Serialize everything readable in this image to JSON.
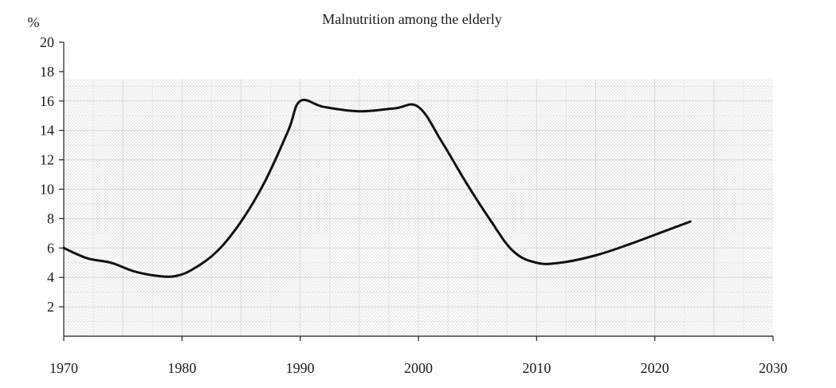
{
  "chart_data": {
    "type": "line",
    "title": "Malnutrition among the elderly",
    "xlabel": "",
    "ylabel": "%",
    "xlim": [
      1970,
      2030
    ],
    "ylim": [
      0,
      20
    ],
    "xticks": [
      "1970",
      "1980",
      "1990",
      "2000",
      "2010",
      "2020",
      "2030"
    ],
    "yticks": [
      "2",
      "4",
      "6",
      "8",
      "10",
      "12",
      "14",
      "16",
      "18",
      "20"
    ],
    "grid": true,
    "legend": "none",
    "series": [
      {
        "x": [
          1970,
          1972,
          1974,
          1976,
          1978,
          1979.5,
          1981,
          1983,
          1985,
          1987,
          1989,
          1990,
          1992,
          1995,
          1998,
          2000,
          2002,
          2004,
          2006,
          2008,
          2010,
          2012,
          2015,
          2018,
          2021,
          2023
        ],
        "y": [
          6.0,
          5.3,
          5.0,
          4.4,
          4.1,
          4.1,
          4.6,
          5.8,
          7.8,
          10.5,
          14.0,
          16.0,
          15.6,
          15.3,
          15.5,
          15.6,
          13.2,
          10.5,
          8.0,
          5.8,
          5.0,
          5.0,
          5.5,
          6.3,
          7.2,
          7.8
        ],
        "color": "#111111"
      }
    ]
  }
}
